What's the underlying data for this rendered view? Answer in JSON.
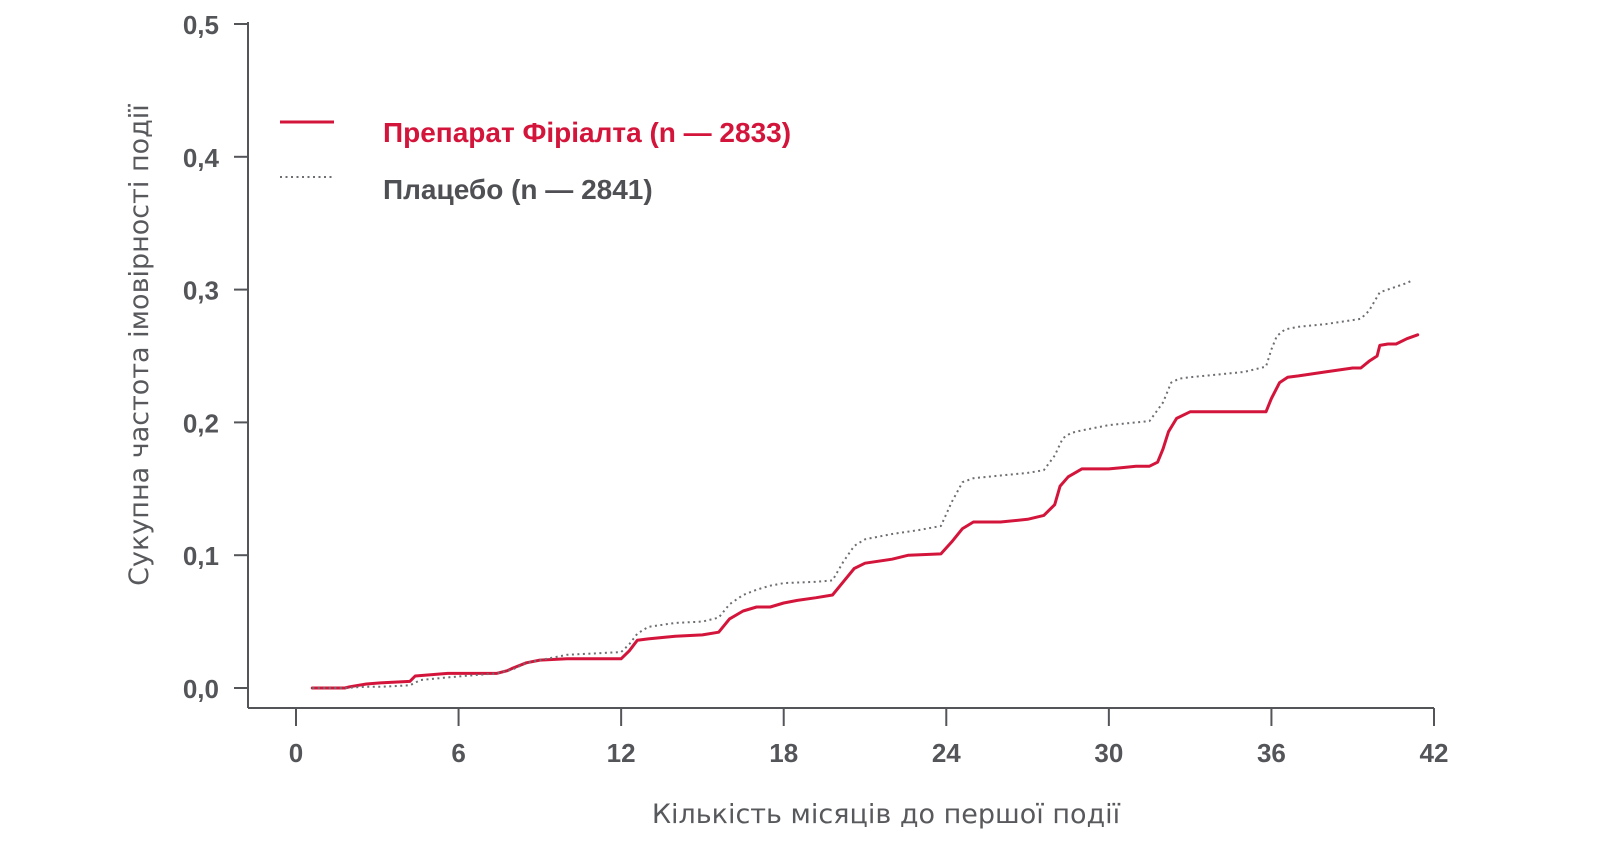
{
  "chart_data": {
    "type": "line",
    "title": "",
    "xlabel": "Кількість місяців до першої події",
    "ylabel": "Сукупна частота імовірності події",
    "xlim": [
      0,
      42
    ],
    "ylim": [
      0,
      0.5
    ],
    "x_ticks": [
      0,
      6,
      12,
      18,
      24,
      30,
      36,
      42
    ],
    "x_tick_labels": [
      "0",
      "6",
      "12",
      "18",
      "24",
      "30",
      "36",
      "42"
    ],
    "y_ticks": [
      0,
      0.1,
      0.2,
      0.3,
      0.4,
      0.5
    ],
    "y_tick_labels": [
      "0,0",
      "0,1",
      "0,2",
      "0,3",
      "0,4",
      "0,5"
    ],
    "grid": false,
    "legend_position": "top-left",
    "series": [
      {
        "name": "Препарат Фіріалта (n — 2833)",
        "color": "#d4153b",
        "style": "solid",
        "x": [
          0.6,
          1.8,
          2.0,
          2.6,
          3.2,
          4.2,
          4.4,
          5.6,
          6.2,
          7.4,
          7.8,
          8.0,
          8.5,
          9.0,
          10.0,
          12.0,
          12.3,
          12.6,
          13.0,
          14.0,
          15.0,
          15.6,
          16.0,
          16.5,
          17.0,
          17.5,
          18.0,
          18.5,
          19.2,
          19.8,
          20.2,
          20.6,
          21.0,
          22.0,
          22.6,
          23.8,
          24.2,
          24.6,
          25.0,
          26.0,
          27.0,
          27.6,
          28.0,
          28.2,
          28.5,
          29.0,
          30.0,
          30.5,
          31.0,
          31.5,
          31.8,
          32.0,
          32.2,
          32.5,
          33.0,
          34.0,
          35.0,
          35.8,
          36.0,
          36.3,
          36.6,
          37.0,
          38.0,
          39.0,
          39.3,
          39.6,
          39.9,
          40.0,
          40.3,
          40.6,
          41.0,
          41.4
        ],
        "y": [
          0.0,
          0.0,
          0.001,
          0.003,
          0.004,
          0.005,
          0.009,
          0.011,
          0.011,
          0.011,
          0.013,
          0.015,
          0.019,
          0.021,
          0.022,
          0.022,
          0.028,
          0.036,
          0.037,
          0.039,
          0.04,
          0.042,
          0.052,
          0.058,
          0.061,
          0.061,
          0.064,
          0.066,
          0.068,
          0.07,
          0.08,
          0.09,
          0.094,
          0.097,
          0.1,
          0.101,
          0.11,
          0.12,
          0.125,
          0.125,
          0.127,
          0.13,
          0.138,
          0.152,
          0.159,
          0.165,
          0.165,
          0.166,
          0.167,
          0.167,
          0.17,
          0.18,
          0.193,
          0.203,
          0.208,
          0.208,
          0.208,
          0.208,
          0.218,
          0.23,
          0.234,
          0.235,
          0.238,
          0.241,
          0.241,
          0.246,
          0.25,
          0.258,
          0.259,
          0.259,
          0.263,
          0.266
        ]
      },
      {
        "name": "Плацебо (n — 2841)",
        "color": "#6d6e72",
        "style": "dotted",
        "x": [
          0.6,
          1.8,
          2.6,
          3.2,
          4.2,
          4.6,
          5.6,
          6.2,
          7.4,
          7.8,
          8.0,
          8.5,
          9.5,
          10.0,
          12.0,
          12.3,
          12.6,
          13.0,
          14.0,
          15.0,
          15.6,
          16.0,
          16.5,
          17.0,
          17.5,
          18.0,
          19.2,
          19.8,
          20.2,
          20.6,
          21.0,
          22.0,
          23.0,
          23.8,
          24.2,
          24.6,
          25.0,
          26.0,
          27.0,
          27.6,
          28.0,
          28.3,
          28.6,
          29.0,
          30.0,
          31.0,
          31.5,
          32.0,
          32.3,
          32.6,
          33.0,
          34.0,
          35.0,
          35.8,
          36.0,
          36.2,
          36.5,
          37.0,
          38.0,
          39.0,
          39.3,
          39.6,
          40.0,
          41.0,
          41.2
        ],
        "y": [
          0.0,
          0.0,
          0.001,
          0.001,
          0.002,
          0.006,
          0.008,
          0.009,
          0.011,
          0.013,
          0.014,
          0.019,
          0.023,
          0.025,
          0.027,
          0.033,
          0.041,
          0.046,
          0.049,
          0.05,
          0.053,
          0.063,
          0.07,
          0.074,
          0.077,
          0.079,
          0.08,
          0.081,
          0.095,
          0.107,
          0.112,
          0.116,
          0.119,
          0.122,
          0.14,
          0.155,
          0.158,
          0.16,
          0.162,
          0.164,
          0.175,
          0.188,
          0.192,
          0.194,
          0.198,
          0.2,
          0.201,
          0.215,
          0.23,
          0.233,
          0.234,
          0.236,
          0.238,
          0.242,
          0.255,
          0.265,
          0.27,
          0.272,
          0.274,
          0.277,
          0.278,
          0.284,
          0.298,
          0.305,
          0.307
        ]
      }
    ]
  }
}
